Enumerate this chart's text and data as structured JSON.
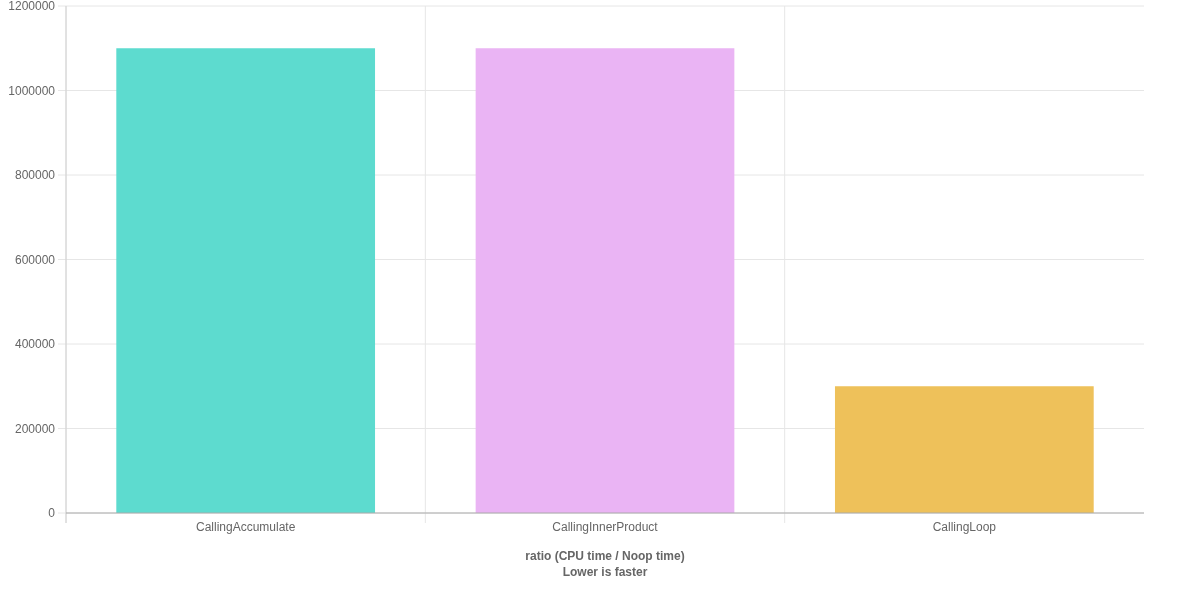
{
  "chart_data": {
    "type": "bar",
    "categories": [
      "CallingAccumulate",
      "CallingInnerProduct",
      "CallingLoop"
    ],
    "values": [
      1100000,
      1100000,
      300000
    ],
    "colors": [
      "#5ddbcf",
      "#eab4f4",
      "#eec15a"
    ],
    "xlabel": "ratio (CPU time / Noop time)",
    "annotations": [
      "Lower is faster"
    ],
    "ylim": [
      0,
      1200000
    ],
    "yticks": [
      0,
      200000,
      400000,
      600000,
      800000,
      1000000,
      1200000
    ],
    "grid": true
  }
}
